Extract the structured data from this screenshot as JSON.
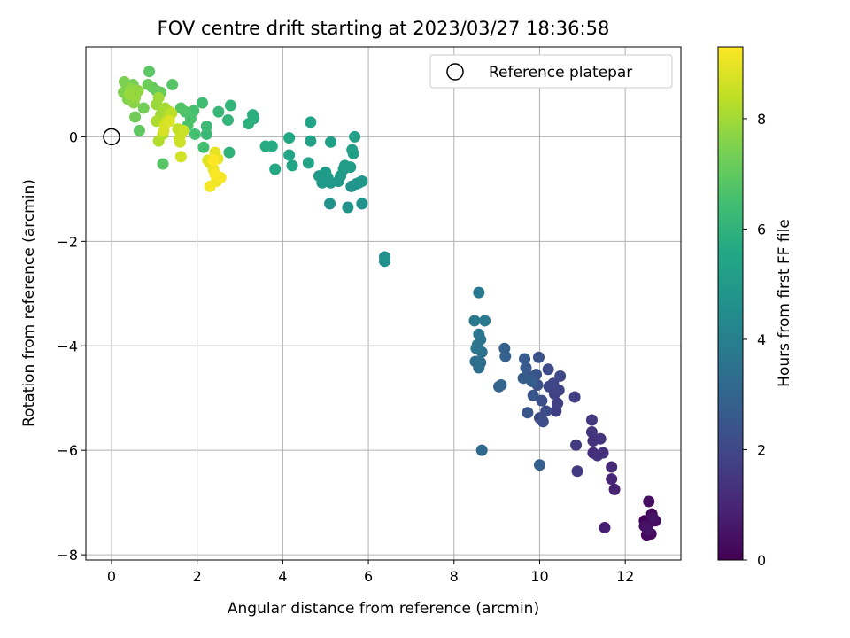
{
  "chart_data": {
    "type": "scatter",
    "title": "FOV centre drift starting at 2023/03/27 18:36:58",
    "xlabel": "Angular distance from reference (arcmin)",
    "ylabel": "Rotation from reference (arcmin)",
    "colorbar_label": "Hours from first FF file",
    "xlim": [
      -0.6,
      13.3
    ],
    "ylim": [
      -8.1,
      1.72
    ],
    "x_ticks": [
      0,
      2,
      4,
      6,
      8,
      10,
      12
    ],
    "y_ticks": [
      -8,
      -6,
      -4,
      -2,
      0
    ],
    "colorbar_ticks": [
      0,
      2,
      4,
      6,
      8
    ],
    "colorbar_range": [
      0,
      9.3
    ],
    "colormap": "viridis",
    "grid": true,
    "legend": {
      "location": "upper right",
      "entries": [
        "Reference platepar"
      ]
    },
    "reference_point": {
      "x": 0,
      "y": 0
    },
    "series": [
      {
        "points": [
          [
            12.45,
            -7.35,
            0.05
          ],
          [
            12.55,
            -7.4,
            0.1
          ],
          [
            12.62,
            -7.22,
            0.15
          ],
          [
            12.5,
            -7.62,
            0.2
          ],
          [
            12.6,
            -7.6,
            0.25
          ],
          [
            12.7,
            -7.35,
            0.3
          ],
          [
            12.55,
            -6.98,
            0.35
          ],
          [
            12.45,
            -7.45,
            0.4
          ],
          [
            12.65,
            -7.3,
            0.45
          ],
          [
            12.52,
            -7.52,
            0.5
          ],
          [
            11.52,
            -7.48,
            0.8
          ],
          [
            11.75,
            -6.75,
            0.9
          ],
          [
            11.68,
            -6.55,
            1.0
          ],
          [
            11.68,
            -6.32,
            1.1
          ],
          [
            11.25,
            -6.05,
            1.2
          ],
          [
            11.48,
            -6.05,
            1.25
          ],
          [
            11.35,
            -6.1,
            1.3
          ],
          [
            11.25,
            -5.82,
            1.35
          ],
          [
            11.42,
            -5.78,
            1.4
          ],
          [
            11.22,
            -5.65,
            1.45
          ],
          [
            11.22,
            -5.42,
            1.5
          ],
          [
            10.88,
            -6.4,
            1.55
          ],
          [
            10.85,
            -5.9,
            1.6
          ],
          [
            10.82,
            -4.98,
            1.65
          ],
          [
            10.38,
            -5.25,
            1.7
          ],
          [
            10.42,
            -5.1,
            1.75
          ],
          [
            10.35,
            -4.92,
            1.8
          ],
          [
            10.45,
            -4.85,
            1.85
          ],
          [
            10.32,
            -4.72,
            1.9
          ],
          [
            10.22,
            -4.78,
            1.95
          ],
          [
            10.48,
            -4.58,
            2.0
          ],
          [
            10.2,
            -4.45,
            2.05
          ],
          [
            10.15,
            -5.25,
            2.1
          ],
          [
            10.0,
            -5.38,
            2.15
          ],
          [
            10.08,
            -5.45,
            2.2
          ],
          [
            10.05,
            -5.05,
            2.25
          ],
          [
            9.95,
            -4.75,
            2.3
          ],
          [
            9.92,
            -4.55,
            2.35
          ],
          [
            9.98,
            -4.22,
            2.4
          ],
          [
            9.85,
            -4.95,
            2.45
          ],
          [
            9.72,
            -5.28,
            2.5
          ],
          [
            9.75,
            -4.58,
            2.55
          ],
          [
            9.68,
            -4.42,
            2.6
          ],
          [
            9.65,
            -4.25,
            2.65
          ],
          [
            9.62,
            -4.62,
            2.7
          ],
          [
            9.82,
            -4.68,
            2.75
          ],
          [
            10.0,
            -6.28,
            2.8
          ],
          [
            9.2,
            -4.2,
            2.85
          ],
          [
            9.18,
            -4.05,
            2.9
          ],
          [
            9.05,
            -4.78,
            2.95
          ],
          [
            9.1,
            -4.75,
            3.0
          ],
          [
            8.65,
            -6.0,
            3.15
          ],
          [
            8.5,
            -4.3,
            3.3
          ],
          [
            8.62,
            -4.32,
            3.35
          ],
          [
            8.58,
            -4.42,
            3.4
          ],
          [
            8.65,
            -4.12,
            3.45
          ],
          [
            8.55,
            -3.98,
            3.5
          ],
          [
            8.62,
            -3.88,
            3.55
          ],
          [
            8.58,
            -3.78,
            3.6
          ],
          [
            8.52,
            -4.05,
            3.65
          ],
          [
            8.48,
            -3.52,
            3.7
          ],
          [
            8.72,
            -3.52,
            3.75
          ],
          [
            8.58,
            -2.98,
            3.8
          ],
          [
            6.38,
            -2.38,
            4.6
          ],
          [
            6.38,
            -2.3,
            4.65
          ],
          [
            5.85,
            -1.28,
            4.7
          ],
          [
            5.52,
            -1.35,
            4.72
          ],
          [
            5.1,
            -1.28,
            4.75
          ],
          [
            5.6,
            -0.95,
            4.8
          ],
          [
            5.72,
            -0.9,
            4.82
          ],
          [
            5.78,
            -0.88,
            4.85
          ],
          [
            5.85,
            -0.85,
            4.87
          ],
          [
            5.3,
            -0.85,
            4.9
          ],
          [
            5.12,
            -0.88,
            4.92
          ],
          [
            5.02,
            -0.85,
            4.95
          ],
          [
            4.92,
            -0.88,
            4.97
          ],
          [
            4.85,
            -0.75,
            5.0
          ],
          [
            5.05,
            -0.78,
            5.02
          ],
          [
            5.0,
            -0.68,
            5.05
          ],
          [
            5.35,
            -0.75,
            5.07
          ],
          [
            5.42,
            -0.62,
            5.1
          ],
          [
            5.45,
            -0.55,
            5.12
          ],
          [
            5.58,
            -0.58,
            5.15
          ],
          [
            5.62,
            -0.25,
            5.17
          ],
          [
            5.65,
            -0.32,
            5.2
          ],
          [
            5.68,
            0.0,
            5.22
          ],
          [
            5.12,
            -0.1,
            5.25
          ],
          [
            4.65,
            -0.08,
            5.3
          ],
          [
            4.6,
            -0.5,
            5.35
          ],
          [
            4.65,
            0.28,
            5.4
          ],
          [
            4.22,
            -0.55,
            5.45
          ],
          [
            4.15,
            -0.35,
            5.5
          ],
          [
            4.15,
            -0.02,
            5.55
          ],
          [
            3.82,
            -0.62,
            5.6
          ],
          [
            3.75,
            -0.18,
            5.65
          ],
          [
            3.6,
            -0.18,
            5.7
          ],
          [
            3.32,
            0.35,
            5.8
          ],
          [
            3.3,
            0.42,
            5.85
          ],
          [
            3.2,
            0.25,
            5.9
          ],
          [
            2.75,
            -0.3,
            6.0
          ],
          [
            2.78,
            0.6,
            6.05
          ],
          [
            2.72,
            0.32,
            6.1
          ],
          [
            2.5,
            0.48,
            6.2
          ],
          [
            2.22,
            0.05,
            6.25
          ],
          [
            2.22,
            0.2,
            6.3
          ],
          [
            2.12,
            0.65,
            6.4
          ],
          [
            2.15,
            -0.2,
            6.45
          ],
          [
            1.95,
            0.05,
            6.5
          ],
          [
            1.92,
            0.5,
            6.55
          ],
          [
            1.85,
            0.35,
            6.6
          ],
          [
            1.78,
            0.22,
            6.65
          ],
          [
            1.72,
            0.48,
            6.7
          ],
          [
            1.62,
            0.55,
            6.75
          ],
          [
            1.42,
            1.0,
            6.8
          ],
          [
            1.2,
            -0.52,
            6.85
          ],
          [
            0.88,
            1.25,
            6.9
          ],
          [
            0.65,
            0.12,
            7.0
          ],
          [
            0.95,
            0.95,
            7.05
          ],
          [
            1.05,
            0.88,
            7.1
          ],
          [
            1.15,
            0.85,
            7.15
          ],
          [
            0.85,
            1.0,
            7.2
          ],
          [
            0.55,
            0.38,
            7.25
          ],
          [
            0.75,
            0.55,
            7.3
          ],
          [
            0.5,
            1.0,
            7.35
          ],
          [
            0.3,
            1.05,
            7.45
          ],
          [
            0.28,
            0.85,
            7.5
          ],
          [
            0.38,
            0.72,
            7.55
          ],
          [
            0.45,
            0.78,
            7.6
          ],
          [
            0.52,
            0.65,
            7.65
          ],
          [
            0.45,
            0.92,
            7.7
          ],
          [
            0.62,
            0.88,
            7.75
          ],
          [
            0.55,
            0.75,
            7.8
          ],
          [
            0.42,
            0.82,
            7.85
          ],
          [
            1.05,
            0.62,
            7.9
          ],
          [
            1.1,
            0.75,
            7.95
          ],
          [
            1.15,
            0.42,
            8.0
          ],
          [
            1.25,
            0.55,
            8.05
          ],
          [
            1.35,
            0.48,
            8.1
          ],
          [
            1.05,
            0.3,
            8.15
          ],
          [
            1.1,
            -0.08,
            8.2
          ],
          [
            1.2,
            0.05,
            8.25
          ],
          [
            1.3,
            0.35,
            8.3
          ],
          [
            1.4,
            0.45,
            8.35
          ],
          [
            1.55,
            0.15,
            8.4
          ],
          [
            1.58,
            -0.05,
            8.45
          ],
          [
            1.62,
            0.05,
            8.5
          ],
          [
            1.68,
            0.12,
            8.55
          ],
          [
            1.6,
            -0.1,
            8.6
          ],
          [
            1.62,
            -0.38,
            8.65
          ],
          [
            1.25,
            0.25,
            8.7
          ],
          [
            1.22,
            0.12,
            8.75
          ],
          [
            1.35,
            0.3,
            8.8
          ],
          [
            2.25,
            -0.45,
            8.85
          ],
          [
            2.3,
            -0.5,
            8.9
          ],
          [
            2.42,
            -0.3,
            8.95
          ],
          [
            2.48,
            -0.42,
            9.0
          ],
          [
            2.38,
            -0.62,
            9.05
          ],
          [
            2.45,
            -0.85,
            9.1
          ],
          [
            2.3,
            -0.95,
            9.15
          ],
          [
            2.55,
            -0.78,
            9.2
          ],
          [
            2.42,
            -0.72,
            9.25
          ],
          [
            2.38,
            -0.45,
            9.3
          ]
        ]
      }
    ]
  }
}
